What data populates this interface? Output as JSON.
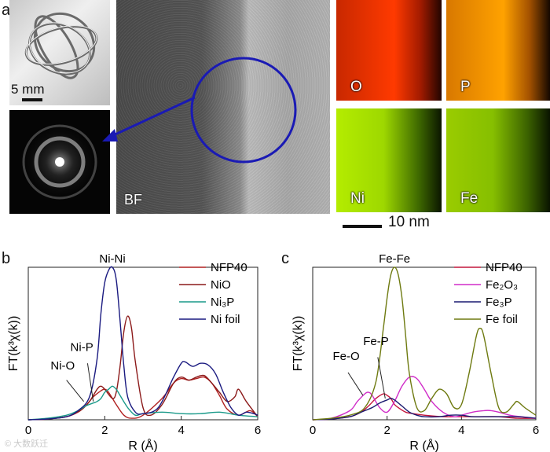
{
  "panels": {
    "a": {
      "letter": "a",
      "photo_scale": "5 mm",
      "bf_label": "BF",
      "map_scale": "10 nm",
      "maps": [
        "O",
        "P",
        "Ni",
        "Fe"
      ]
    },
    "b": {
      "letter": "b"
    },
    "c": {
      "letter": "c"
    }
  },
  "watermark": "© 大数跃迁",
  "colors": {
    "circle": "#1a1ab4",
    "arrow": "#1a1ab4"
  },
  "chart_data": [
    {
      "type": "line",
      "panel": "b",
      "xlabel": "R (Å)",
      "ylabel": "FT(k³χ(k))",
      "xlim": [
        0,
        6
      ],
      "ylim": [
        0,
        1.0
      ],
      "xticks": [
        0,
        2,
        4,
        6
      ],
      "legend_position": "top-right",
      "annotations": [
        {
          "text": "Ni-Ni",
          "x": 2.2,
          "y": 1.0
        },
        {
          "text": "Ni-P",
          "x": 1.4,
          "y": 0.42
        },
        {
          "text": "Ni-O",
          "x": 0.9,
          "y": 0.3
        }
      ],
      "series": [
        {
          "name": "NFP40",
          "color": "#b02020",
          "x": [
            0,
            0.5,
            1.0,
            1.3,
            1.5,
            1.7,
            1.9,
            2.0,
            2.1,
            2.3,
            2.5,
            2.7,
            3.0,
            3.5,
            3.8,
            4.0,
            4.2,
            4.4,
            4.6,
            4.8,
            5.0,
            5.2,
            5.5,
            5.8,
            6.0
          ],
          "y": [
            0,
            0.005,
            0.02,
            0.05,
            0.09,
            0.15,
            0.19,
            0.2,
            0.18,
            0.1,
            0.03,
            0.01,
            0.03,
            0.14,
            0.24,
            0.27,
            0.26,
            0.27,
            0.28,
            0.24,
            0.16,
            0.07,
            0.03,
            0.06,
            0.02
          ]
        },
        {
          "name": "NiO",
          "color": "#8c1a1a",
          "x": [
            0,
            0.5,
            1.0,
            1.2,
            1.4,
            1.6,
            1.8,
            1.9,
            2.0,
            2.2,
            2.3,
            2.4,
            2.5,
            2.6,
            2.7,
            2.8,
            3.0,
            3.2,
            3.5,
            3.8,
            4.0,
            4.2,
            4.4,
            4.6,
            4.8,
            5.0,
            5.2,
            5.4,
            5.5,
            5.7,
            6.0
          ],
          "y": [
            0,
            0.005,
            0.02,
            0.04,
            0.07,
            0.12,
            0.2,
            0.22,
            0.2,
            0.14,
            0.18,
            0.35,
            0.58,
            0.68,
            0.6,
            0.38,
            0.08,
            0.03,
            0.1,
            0.24,
            0.28,
            0.26,
            0.28,
            0.29,
            0.24,
            0.18,
            0.12,
            0.15,
            0.2,
            0.12,
            0.02
          ]
        },
        {
          "name": "Ni₃P",
          "color": "#1a9a8a",
          "x": [
            0,
            0.5,
            1.0,
            1.3,
            1.5,
            1.7,
            1.8,
            1.9,
            2.0,
            2.1,
            2.2,
            2.3,
            2.4,
            2.6,
            2.8,
            3.0,
            3.5,
            4.0,
            4.5,
            5.0,
            5.5,
            6.0
          ],
          "y": [
            0,
            0.01,
            0.03,
            0.06,
            0.09,
            0.11,
            0.12,
            0.14,
            0.18,
            0.2,
            0.22,
            0.2,
            0.16,
            0.08,
            0.03,
            0.04,
            0.05,
            0.04,
            0.04,
            0.05,
            0.03,
            0.02
          ]
        },
        {
          "name": "Ni foil",
          "color": "#1a1a80",
          "x": [
            0,
            0.5,
            1.0,
            1.3,
            1.6,
            1.8,
            1.9,
            2.0,
            2.1,
            2.2,
            2.3,
            2.4,
            2.5,
            2.6,
            2.8,
            3.0,
            3.4,
            3.8,
            4.0,
            4.1,
            4.3,
            4.5,
            4.7,
            4.9,
            5.1,
            5.3,
            5.5,
            5.7,
            5.9,
            6.0
          ],
          "y": [
            0,
            0.005,
            0.02,
            0.06,
            0.15,
            0.4,
            0.7,
            0.9,
            0.98,
            1.0,
            0.92,
            0.65,
            0.35,
            0.15,
            0.05,
            0.04,
            0.08,
            0.28,
            0.37,
            0.38,
            0.35,
            0.37,
            0.36,
            0.3,
            0.18,
            0.08,
            0.03,
            0.05,
            0.04,
            0.03
          ]
        }
      ]
    },
    {
      "type": "line",
      "panel": "c",
      "xlabel": "R (Å)",
      "ylabel": "FT(k³χ(k))",
      "xlim": [
        0,
        6
      ],
      "ylim": [
        0,
        1.0
      ],
      "xticks": [
        0,
        2,
        4,
        6
      ],
      "legend_position": "top-right",
      "annotations": [
        {
          "text": "Fe-Fe",
          "x": 2.2,
          "y": 1.0
        },
        {
          "text": "Fe-P",
          "x": 1.7,
          "y": 0.46
        },
        {
          "text": "Fe-O",
          "x": 0.9,
          "y": 0.36
        }
      ],
      "series": [
        {
          "name": "NFP40",
          "color": "#c4163c",
          "x": [
            0,
            0.5,
            1.0,
            1.3,
            1.5,
            1.7,
            1.9,
            2.0,
            2.1,
            2.2,
            2.3,
            2.5,
            2.7,
            3.0,
            3.5,
            4.0,
            4.5,
            5.0,
            5.5,
            6.0
          ],
          "y": [
            0,
            0.005,
            0.02,
            0.05,
            0.09,
            0.14,
            0.17,
            0.16,
            0.14,
            0.1,
            0.08,
            0.05,
            0.04,
            0.03,
            0.02,
            0.02,
            0.02,
            0.02,
            0.01,
            0.01
          ]
        },
        {
          "name": "Fe₂O₃",
          "color": "#d02cc8",
          "x": [
            0,
            0.5,
            1.0,
            1.2,
            1.4,
            1.5,
            1.6,
            1.8,
            2.0,
            2.2,
            2.4,
            2.6,
            2.8,
            3.0,
            3.2,
            3.5,
            3.8,
            4.0,
            4.3,
            4.6,
            4.8,
            5.0,
            5.3,
            5.6,
            6.0
          ],
          "y": [
            0,
            0.01,
            0.06,
            0.12,
            0.17,
            0.18,
            0.16,
            0.08,
            0.05,
            0.12,
            0.22,
            0.28,
            0.27,
            0.2,
            0.12,
            0.05,
            0.02,
            0.03,
            0.05,
            0.06,
            0.06,
            0.05,
            0.03,
            0.02,
            0.01
          ]
        },
        {
          "name": "Fe₃P",
          "color": "#1a1a70",
          "x": [
            0,
            0.5,
            1.0,
            1.3,
            1.6,
            1.8,
            2.0,
            2.1,
            2.2,
            2.4,
            2.6,
            2.8,
            3.0,
            3.4,
            3.7,
            4.0,
            4.3,
            4.6,
            5.0,
            5.5,
            6.0
          ],
          "y": [
            0,
            0.005,
            0.02,
            0.05,
            0.08,
            0.11,
            0.13,
            0.14,
            0.13,
            0.09,
            0.05,
            0.03,
            0.02,
            0.02,
            0.03,
            0.03,
            0.02,
            0.02,
            0.02,
            0.02,
            0.01
          ]
        },
        {
          "name": "Fe foil",
          "color": "#6e7a10",
          "x": [
            0,
            0.5,
            1.0,
            1.4,
            1.7,
            1.9,
            2.0,
            2.1,
            2.2,
            2.3,
            2.4,
            2.5,
            2.6,
            2.8,
            3.0,
            3.2,
            3.4,
            3.6,
            3.8,
            4.0,
            4.2,
            4.4,
            4.5,
            4.6,
            4.8,
            5.0,
            5.2,
            5.4,
            5.5,
            5.7,
            6.0
          ],
          "y": [
            0,
            0.01,
            0.03,
            0.08,
            0.25,
            0.6,
            0.8,
            0.95,
            1.0,
            0.95,
            0.8,
            0.55,
            0.3,
            0.08,
            0.06,
            0.14,
            0.2,
            0.17,
            0.08,
            0.1,
            0.3,
            0.55,
            0.6,
            0.55,
            0.3,
            0.08,
            0.05,
            0.1,
            0.12,
            0.08,
            0.03
          ]
        }
      ]
    }
  ]
}
